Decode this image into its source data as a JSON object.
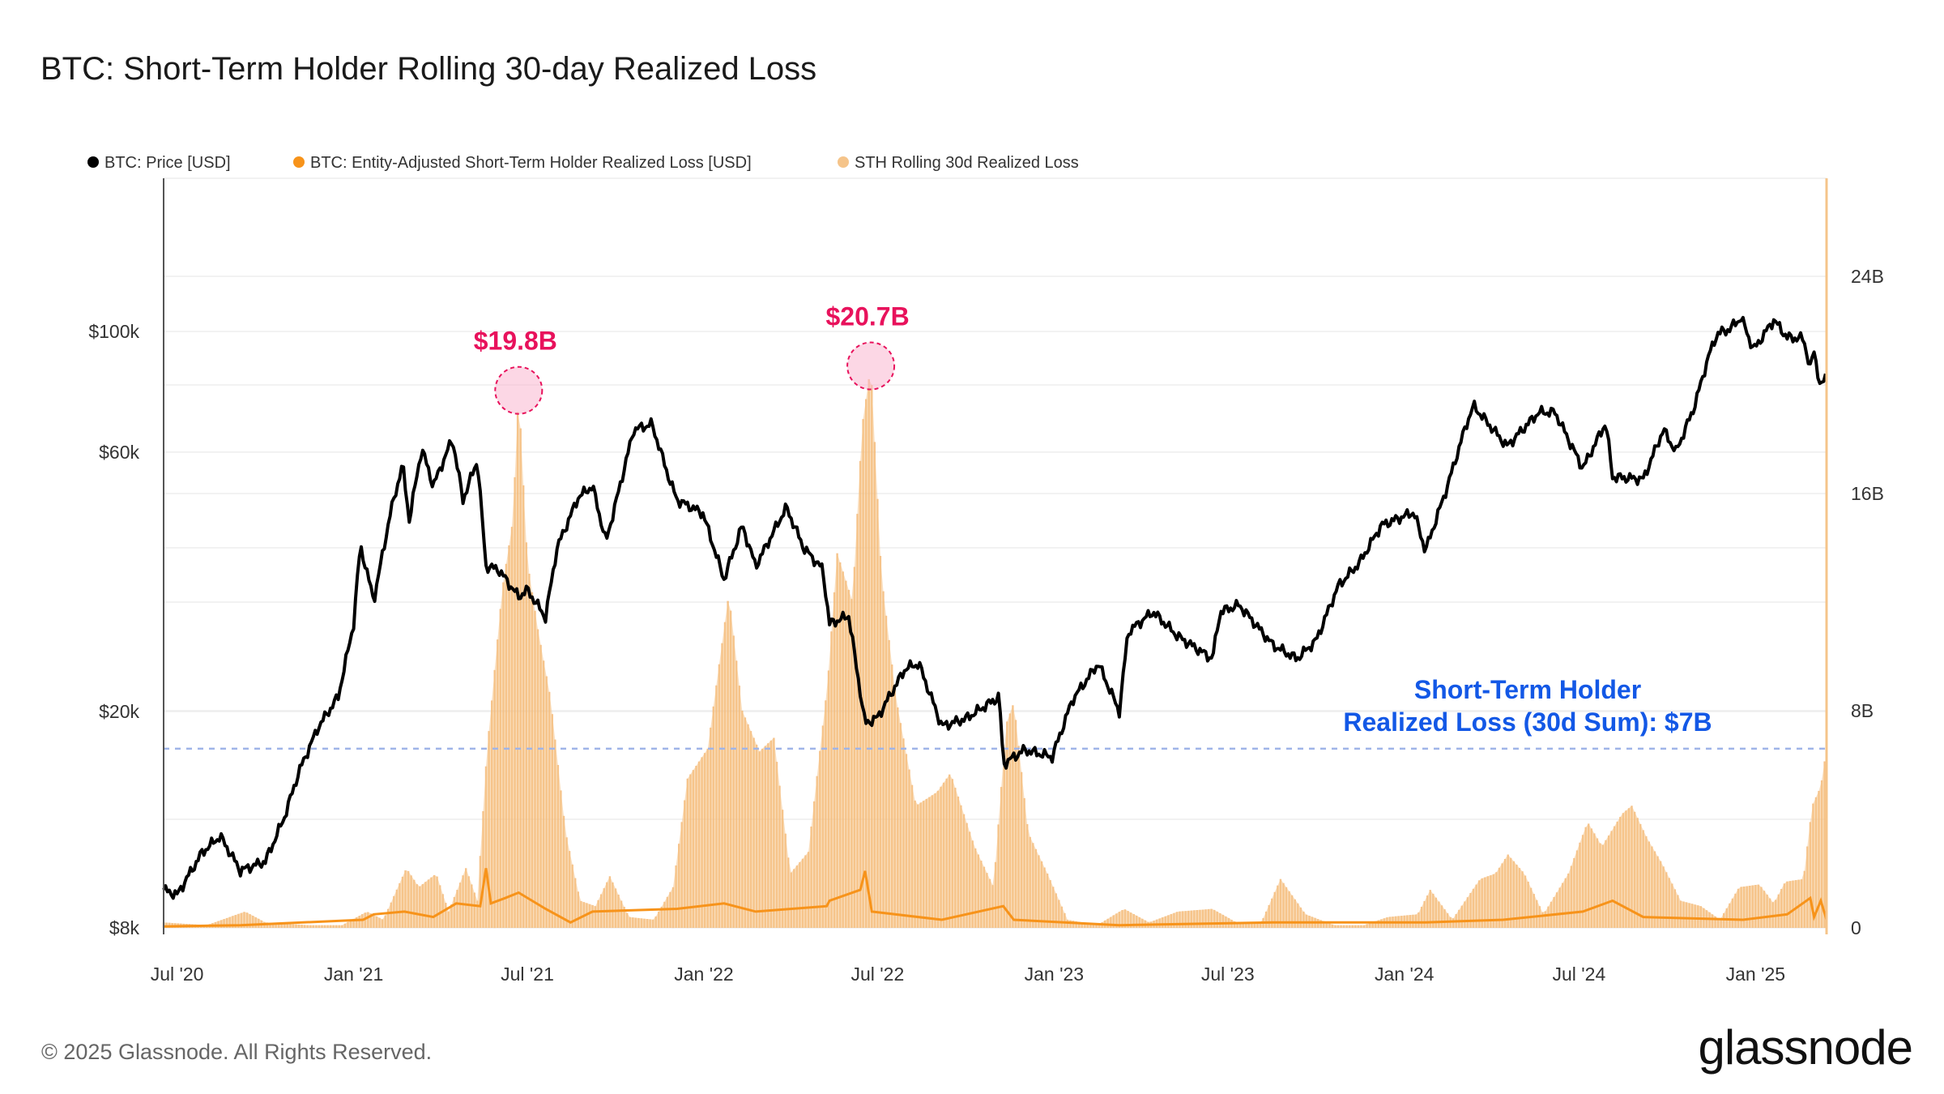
{
  "title": "BTC: Short-Term Holder Rolling 30-day Realized Loss",
  "footer": "© 2025 Glassnode. All Rights Reserved.",
  "logo": "glassnode",
  "colors": {
    "price": "#000000",
    "daily_loss": "#f7931a",
    "rolling_loss": "#f5c48a",
    "annotation_red": "#e8125c",
    "annotation_blue": "#1358e6",
    "reference_line": "#9fb4e8"
  },
  "chart_data": {
    "type": "line",
    "x_range": [
      "2020-06-17",
      "2025-03-16"
    ],
    "x_ticks": [
      {
        "date": "2020-07-01",
        "label": "Jul '20"
      },
      {
        "date": "2021-01-01",
        "label": "Jan '21"
      },
      {
        "date": "2021-07-01",
        "label": "Jul '21"
      },
      {
        "date": "2022-01-01",
        "label": "Jan '22"
      },
      {
        "date": "2022-07-01",
        "label": "Jul '22"
      },
      {
        "date": "2023-01-01",
        "label": "Jan '23"
      },
      {
        "date": "2023-07-01",
        "label": "Jul '23"
      },
      {
        "date": "2024-01-01",
        "label": "Jan '24"
      },
      {
        "date": "2024-07-01",
        "label": "Jul '24"
      },
      {
        "date": "2025-01-01",
        "label": "Jan '25"
      }
    ],
    "y_left": {
      "scale": "log",
      "range": [
        7400,
        160000
      ],
      "ticks": [
        {
          "v": 8000,
          "label": "$8k"
        },
        {
          "v": 20000,
          "label": "$20k"
        },
        {
          "v": 60000,
          "label": "$60k"
        },
        {
          "v": 100000,
          "label": "$100k"
        }
      ]
    },
    "y_right": {
      "scale": "linear",
      "unit": "B USD",
      "range": [
        0,
        27.9
      ],
      "ticks": [
        {
          "v": 0,
          "label": "0"
        },
        {
          "v": 8,
          "label": "8B"
        },
        {
          "v": 16,
          "label": "16B"
        },
        {
          "v": 24,
          "label": "24B"
        }
      ]
    },
    "grid": true,
    "legend": {
      "placement": "top-left",
      "items": [
        {
          "label": "BTC: Price [USD]",
          "color": "#000000"
        },
        {
          "label": "BTC: Entity-Adjusted Short-Term Holder Realized Loss [USD]",
          "color": "#f7931a"
        },
        {
          "label": "STH Rolling 30d Realized Loss",
          "color": "#f5c48a"
        }
      ]
    },
    "series": [
      {
        "name": "BTC: Price [USD]",
        "axis": "left",
        "points": [
          [
            "2020-06-17",
            9400
          ],
          [
            "2020-07-01",
            9200
          ],
          [
            "2020-07-27",
            11000
          ],
          [
            "2020-08-15",
            11800
          ],
          [
            "2020-09-05",
            10200
          ],
          [
            "2020-10-01",
            10600
          ],
          [
            "2020-10-21",
            12800
          ],
          [
            "2020-11-05",
            15500
          ],
          [
            "2020-11-25",
            18700
          ],
          [
            "2020-12-16",
            21300
          ],
          [
            "2021-01-01",
            29000
          ],
          [
            "2021-01-08",
            40500
          ],
          [
            "2021-01-22",
            32000
          ],
          [
            "2021-02-08",
            46000
          ],
          [
            "2021-02-21",
            57000
          ],
          [
            "2021-02-28",
            45000
          ],
          [
            "2021-03-13",
            61000
          ],
          [
            "2021-03-25",
            52000
          ],
          [
            "2021-04-14",
            63500
          ],
          [
            "2021-04-25",
            49000
          ],
          [
            "2021-05-10",
            58000
          ],
          [
            "2021-05-19",
            37000
          ],
          [
            "2021-06-01",
            36500
          ],
          [
            "2021-06-22",
            32500
          ],
          [
            "2021-07-01",
            33500
          ],
          [
            "2021-07-20",
            29800
          ],
          [
            "2021-08-01",
            40000
          ],
          [
            "2021-08-23",
            49500
          ],
          [
            "2021-09-07",
            52000
          ],
          [
            "2021-09-21",
            41000
          ],
          [
            "2021-10-05",
            51500
          ],
          [
            "2021-10-20",
            66000
          ],
          [
            "2021-11-08",
            67500
          ],
          [
            "2021-11-26",
            53500
          ],
          [
            "2021-12-04",
            49000
          ],
          [
            "2021-12-31",
            46300
          ],
          [
            "2022-01-22",
            35000
          ],
          [
            "2022-02-10",
            44000
          ],
          [
            "2022-02-24",
            37000
          ],
          [
            "2022-03-28",
            47500
          ],
          [
            "2022-04-15",
            40000
          ],
          [
            "2022-05-05",
            36500
          ],
          [
            "2022-05-12",
            29000
          ],
          [
            "2022-06-01",
            30000
          ],
          [
            "2022-06-18",
            19000
          ],
          [
            "2022-07-01",
            19500
          ],
          [
            "2022-07-30",
            24000
          ],
          [
            "2022-08-13",
            24500
          ],
          [
            "2022-09-06",
            18800
          ],
          [
            "2022-10-01",
            19400
          ],
          [
            "2022-11-05",
            21300
          ],
          [
            "2022-11-09",
            16000
          ],
          [
            "2022-12-01",
            17000
          ],
          [
            "2022-12-30",
            16500
          ],
          [
            "2023-01-20",
            21000
          ],
          [
            "2023-02-16",
            24500
          ],
          [
            "2023-03-10",
            20000
          ],
          [
            "2023-03-19",
            28000
          ],
          [
            "2023-04-14",
            30500
          ],
          [
            "2023-05-10",
            27500
          ],
          [
            "2023-06-15",
            25000
          ],
          [
            "2023-06-23",
            30500
          ],
          [
            "2023-07-13",
            31400
          ],
          [
            "2023-08-17",
            26500
          ],
          [
            "2023-09-11",
            25000
          ],
          [
            "2023-10-01",
            27000
          ],
          [
            "2023-10-24",
            34000
          ],
          [
            "2023-11-15",
            37500
          ],
          [
            "2023-12-08",
            44000
          ],
          [
            "2024-01-11",
            46500
          ],
          [
            "2024-01-23",
            39500
          ],
          [
            "2024-02-15",
            52000
          ],
          [
            "2024-03-05",
            67000
          ],
          [
            "2024-03-13",
            73000
          ],
          [
            "2024-04-17",
            61500
          ],
          [
            "2024-05-20",
            71000
          ],
          [
            "2024-06-06",
            71000
          ],
          [
            "2024-07-05",
            56000
          ],
          [
            "2024-07-29",
            68000
          ],
          [
            "2024-08-05",
            54000
          ],
          [
            "2024-09-06",
            53500
          ],
          [
            "2024-09-27",
            66000
          ],
          [
            "2024-10-10",
            60000
          ],
          [
            "2024-10-29",
            72500
          ],
          [
            "2024-11-13",
            90000
          ],
          [
            "2024-11-22",
            99000
          ],
          [
            "2024-12-05",
            101000
          ],
          [
            "2024-12-17",
            106000
          ],
          [
            "2024-12-30",
            92500
          ],
          [
            "2025-01-20",
            105000
          ],
          [
            "2025-02-03",
            97500
          ],
          [
            "2025-02-20",
            97000
          ],
          [
            "2025-02-28",
            84000
          ],
          [
            "2025-03-02",
            94000
          ],
          [
            "2025-03-10",
            78500
          ],
          [
            "2025-03-16",
            83500
          ]
        ]
      },
      {
        "name": "BTC: Entity-Adjusted Short-Term Holder Realized Loss [USD]",
        "axis": "right",
        "points": [
          [
            "2020-06-17",
            0.05
          ],
          [
            "2020-09-05",
            0.1
          ],
          [
            "2021-01-11",
            0.3
          ],
          [
            "2021-01-22",
            0.5
          ],
          [
            "2021-02-23",
            0.6
          ],
          [
            "2021-03-25",
            0.4
          ],
          [
            "2021-04-18",
            0.9
          ],
          [
            "2021-05-13",
            0.8
          ],
          [
            "2021-05-19",
            2.2
          ],
          [
            "2021-05-24",
            0.9
          ],
          [
            "2021-06-08",
            1.1
          ],
          [
            "2021-06-22",
            1.3
          ],
          [
            "2021-07-20",
            0.7
          ],
          [
            "2021-08-15",
            0.2
          ],
          [
            "2021-09-07",
            0.6
          ],
          [
            "2021-12-04",
            0.7
          ],
          [
            "2022-01-22",
            0.9
          ],
          [
            "2022-02-24",
            0.6
          ],
          [
            "2022-05-09",
            0.8
          ],
          [
            "2022-05-12",
            1.0
          ],
          [
            "2022-06-13",
            1.4
          ],
          [
            "2022-06-18",
            2.1
          ],
          [
            "2022-06-25",
            0.6
          ],
          [
            "2022-09-06",
            0.3
          ],
          [
            "2022-11-09",
            0.8
          ],
          [
            "2022-11-20",
            0.3
          ],
          [
            "2023-03-10",
            0.1
          ],
          [
            "2023-08-17",
            0.2
          ],
          [
            "2024-01-23",
            0.2
          ],
          [
            "2024-04-13",
            0.3
          ],
          [
            "2024-07-05",
            0.6
          ],
          [
            "2024-08-05",
            1.0
          ],
          [
            "2024-09-06",
            0.4
          ],
          [
            "2024-12-19",
            0.3
          ],
          [
            "2025-02-03",
            0.5
          ],
          [
            "2025-02-27",
            1.1
          ],
          [
            "2025-03-03",
            0.4
          ],
          [
            "2025-03-10",
            1.0
          ],
          [
            "2025-03-16",
            0.3
          ]
        ]
      },
      {
        "name": "STH Rolling 30d Realized Loss",
        "axis": "right",
        "points": [
          [
            "2020-06-17",
            0.2
          ],
          [
            "2020-08-01",
            0.1
          ],
          [
            "2020-09-10",
            0.6
          ],
          [
            "2020-10-01",
            0.2
          ],
          [
            "2020-11-15",
            0.1
          ],
          [
            "2020-12-20",
            0.1
          ],
          [
            "2021-01-15",
            0.6
          ],
          [
            "2021-02-01",
            0.3
          ],
          [
            "2021-02-25",
            2.2
          ],
          [
            "2021-03-10",
            1.5
          ],
          [
            "2021-03-28",
            2.0
          ],
          [
            "2021-04-10",
            0.6
          ],
          [
            "2021-04-28",
            2.2
          ],
          [
            "2021-05-10",
            1.0
          ],
          [
            "2021-05-20",
            6.5
          ],
          [
            "2021-06-05",
            12.5
          ],
          [
            "2021-06-16",
            15.0
          ],
          [
            "2021-06-22",
            19.8
          ],
          [
            "2021-07-01",
            13.5
          ],
          [
            "2021-07-12",
            11.0
          ],
          [
            "2021-07-25",
            8.5
          ],
          [
            "2021-08-10",
            3.5
          ],
          [
            "2021-08-25",
            1.0
          ],
          [
            "2021-09-10",
            0.8
          ],
          [
            "2021-09-25",
            1.9
          ],
          [
            "2021-10-15",
            0.4
          ],
          [
            "2021-11-10",
            0.3
          ],
          [
            "2021-11-30",
            1.5
          ],
          [
            "2021-12-15",
            5.5
          ],
          [
            "2022-01-05",
            6.6
          ],
          [
            "2022-01-27",
            12.3
          ],
          [
            "2022-02-10",
            8.0
          ],
          [
            "2022-02-28",
            6.5
          ],
          [
            "2022-03-15",
            7.0
          ],
          [
            "2022-04-01",
            2.0
          ],
          [
            "2022-04-20",
            2.8
          ],
          [
            "2022-05-10",
            9.0
          ],
          [
            "2022-05-20",
            13.8
          ],
          [
            "2022-06-05",
            12.0
          ],
          [
            "2022-06-15",
            18.5
          ],
          [
            "2022-06-24",
            20.7
          ],
          [
            "2022-07-05",
            13.0
          ],
          [
            "2022-07-20",
            8.5
          ],
          [
            "2022-08-10",
            4.5
          ],
          [
            "2022-09-01",
            5.0
          ],
          [
            "2022-09-15",
            5.7
          ],
          [
            "2022-10-10",
            3.0
          ],
          [
            "2022-10-30",
            1.5
          ],
          [
            "2022-11-12",
            7.5
          ],
          [
            "2022-11-20",
            8.3
          ],
          [
            "2022-12-05",
            3.5
          ],
          [
            "2022-12-25",
            2.0
          ],
          [
            "2023-01-15",
            0.3
          ],
          [
            "2023-02-15",
            0.1
          ],
          [
            "2023-03-15",
            0.7
          ],
          [
            "2023-04-10",
            0.2
          ],
          [
            "2023-05-10",
            0.6
          ],
          [
            "2023-06-15",
            0.7
          ],
          [
            "2023-07-10",
            0.2
          ],
          [
            "2023-08-05",
            0.2
          ],
          [
            "2023-08-25",
            1.8
          ],
          [
            "2023-09-20",
            0.5
          ],
          [
            "2023-10-20",
            0.1
          ],
          [
            "2023-11-20",
            0.1
          ],
          [
            "2023-12-15",
            0.4
          ],
          [
            "2024-01-15",
            0.5
          ],
          [
            "2024-01-28",
            1.4
          ],
          [
            "2024-02-20",
            0.3
          ],
          [
            "2024-03-20",
            1.8
          ],
          [
            "2024-04-05",
            2.0
          ],
          [
            "2024-04-18",
            2.7
          ],
          [
            "2024-05-05",
            2.0
          ],
          [
            "2024-05-25",
            0.5
          ],
          [
            "2024-06-20",
            2.0
          ],
          [
            "2024-07-10",
            3.9
          ],
          [
            "2024-07-25",
            3.0
          ],
          [
            "2024-08-15",
            4.2
          ],
          [
            "2024-08-25",
            4.5
          ],
          [
            "2024-09-10",
            3.3
          ],
          [
            "2024-09-25",
            2.4
          ],
          [
            "2024-10-15",
            1.0
          ],
          [
            "2024-11-05",
            0.8
          ],
          [
            "2024-11-25",
            0.3
          ],
          [
            "2024-12-15",
            1.5
          ],
          [
            "2025-01-05",
            1.6
          ],
          [
            "2025-01-20",
            0.9
          ],
          [
            "2025-02-01",
            1.7
          ],
          [
            "2025-02-20",
            1.8
          ],
          [
            "2025-03-01",
            4.5
          ],
          [
            "2025-03-10",
            5.2
          ],
          [
            "2025-03-16",
            6.6
          ]
        ]
      }
    ],
    "annotations": [
      {
        "label": "$19.8B",
        "date": "2021-06-22",
        "value": 19.8
      },
      {
        "label": "$20.7B",
        "date": "2022-06-24",
        "value": 20.7
      },
      {
        "label_line1": "Short-Term Holder",
        "label_line2": "Realized Loss (30d Sum): $7B",
        "reference_value": 6.6
      }
    ]
  }
}
